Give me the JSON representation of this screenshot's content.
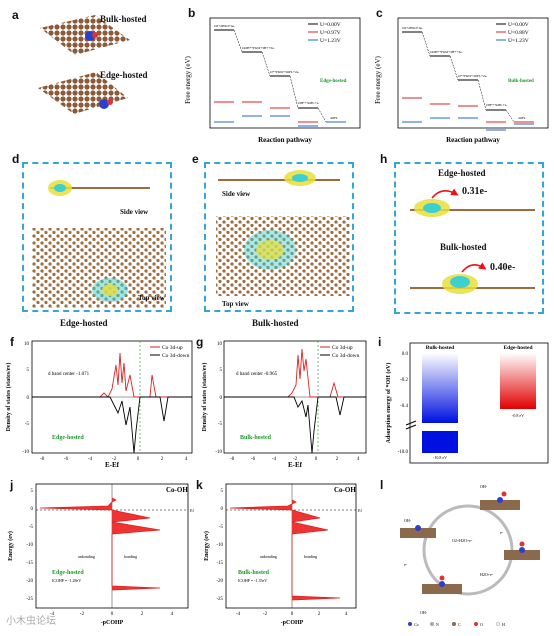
{
  "panel_labels": [
    "a",
    "b",
    "c",
    "d",
    "e",
    "f",
    "g",
    "h",
    "i",
    "j",
    "k",
    "l"
  ],
  "a": {
    "bulk_label": "Bulk-hosted",
    "edge_label": "Edge-hosted"
  },
  "b": {
    "ylabel": "Free energy (eV)",
    "xlabel": "Reaction pathway",
    "inset_label": "Edge-hosted",
    "legend": [
      "U=0.00V",
      "U=0.97V",
      "U=1.23V"
    ],
    "step_labels": [
      "O2+2H2O+4e-",
      "OOH*+H2O+3H++3e-",
      "O*+H2O+3OH-+2e-",
      "OH*+3OH-+e-",
      "4OH-"
    ]
  },
  "c": {
    "ylabel": "Free energy (eV)",
    "xlabel": "Reaction pathway",
    "inset_label": "Bulk-hosted",
    "legend": [
      "U=0.00V",
      "U=0.88V",
      "U=1.23V"
    ],
    "step_labels": [
      "O2+2H2O+4e-",
      "OOH*+H2O+3H++3e-",
      "O*+H2O+3OH-+2e-",
      "OH*+3OH-+e-",
      "4OH-"
    ]
  },
  "d": {
    "side_label": "Side view",
    "top_label": "Top view",
    "caption": "Edge-hosted"
  },
  "e": {
    "side_label": "Side view",
    "top_label": "Top view",
    "caption": "Bulk-hosted"
  },
  "h": {
    "edge_label": "Edge-hosted",
    "edge_charge": "0.31e-",
    "bulk_label": "Bulk-hosted",
    "bulk_charge": "0.40e-"
  },
  "f": {
    "ylabel": "Density of states (states/ev)",
    "xlabel": "E-Ef",
    "legend": [
      "Co 3d-up",
      "Co 3d-down"
    ],
    "dband": "d band center -1.071",
    "inset_label": "Edge-hosted",
    "xticks": [
      "-8",
      "-6",
      "-4",
      "-2",
      "0",
      "2",
      "4"
    ],
    "yticks": [
      "10",
      "5",
      "0",
      "-5",
      "-10"
    ]
  },
  "g": {
    "ylabel": "Density of states (states/ev)",
    "xlabel": "E-Ef",
    "legend": [
      "Co 3d-up",
      "Co 3d-down"
    ],
    "dband": "d band center -0.965",
    "inset_label": "Bulk-hosted",
    "xticks": [
      "-8",
      "-6",
      "-4",
      "-2",
      "0",
      "2",
      "4"
    ],
    "yticks": [
      "10",
      "5",
      "0",
      "-5",
      "-10"
    ]
  },
  "i": {
    "ylabel": "Adsorption energy of *OH (eV)",
    "bulk_label": "Bulk-hosted",
    "edge_label": "Edge-hosted",
    "bulk_value": "-10.8 eV",
    "edge_value": "-0.8 eV",
    "yticks": [
      "0.0",
      "-0.2",
      "-0.4",
      "-10.0"
    ]
  },
  "j": {
    "title": "Co-OH",
    "ylabel": "Energy (ev)",
    "xlabel": "-pCOHP",
    "inset_label": "Edge-hosted",
    "icohp": "ICOHP = -1.28eV",
    "antibond": "anbonding",
    "bond": "bonding",
    "ef": "Ef",
    "yticks": [
      "5",
      "0",
      "-5",
      "-10",
      "-15",
      "-20",
      "-25"
    ],
    "xticks": [
      "-4",
      "-2",
      "0",
      "2",
      "4"
    ]
  },
  "k": {
    "title": "Co-OH",
    "ylabel": "Energy (ev)",
    "xlabel": "-pCOHP",
    "inset_label": "Bulk-hosted",
    "icohp": "ICOHP = -1.35eV",
    "antibond": "anbonding",
    "bond": "bonding",
    "ef": "Ef",
    "yticks": [
      "5",
      "0",
      "-5",
      "-10",
      "-15",
      "-20",
      "-25"
    ],
    "xticks": [
      "-4",
      "-2",
      "0",
      "2",
      "4"
    ]
  },
  "l": {
    "labels": [
      "OH-",
      "O2+H2O+e-",
      "e-",
      "H2O+e-",
      "OH-",
      "OH-",
      "e-"
    ],
    "legend": [
      "Co",
      "N",
      "C",
      "O",
      "H"
    ]
  },
  "watermark": "小木虫论坛"
}
